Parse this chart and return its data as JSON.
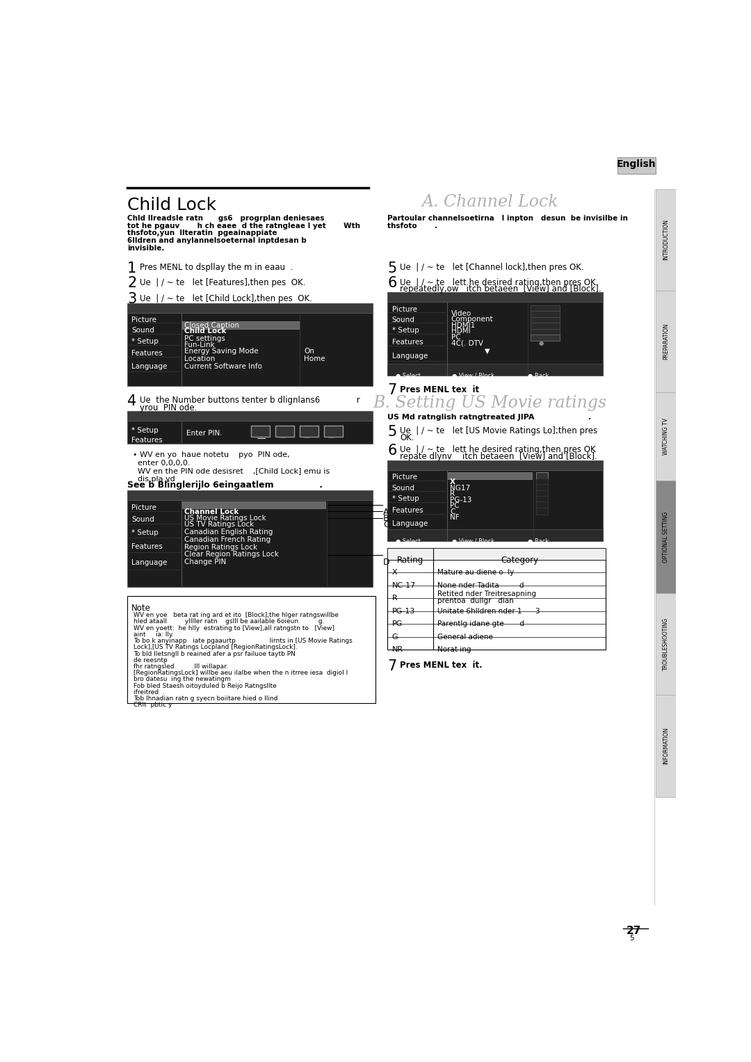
{
  "page_bg": "#ffffff",
  "title_left": "Child Lock",
  "title_right_a": "A. Channel Lock",
  "title_right_b": "B. Setting US Movie ratings",
  "english_tab_text": "English",
  "sidebar_labels": [
    "INTRODUCTION",
    "PREPARATION",
    "WATCHING TV",
    "OPTIONAL SETTING",
    "TROUBLESHOOTING",
    "INFORMATION"
  ],
  "sidebar_y": [
    115,
    305,
    495,
    660,
    870,
    1060
  ],
  "sidebar_h": [
    190,
    190,
    165,
    210,
    190,
    190
  ],
  "sidebar_colors": [
    "#d8d8d8",
    "#d8d8d8",
    "#d8d8d8",
    "#888888",
    "#d8d8d8",
    "#d8d8d8"
  ],
  "page_number": "27",
  "intro_bold_lines": [
    "Chld llreadsle ratn      gs6   progrplan deniesaes",
    "tot he pgauv       h ch eaee  d the ratngleae l yet       Wth",
    "thsfoto,yun  llteratin  pgeainappiate",
    "6lldren and anylannelsoeternal inptdesan b",
    "invisible."
  ],
  "right_intro_lines": [
    "Partoular channelsoetirna   l inpton   desun  be invisilbe in",
    "thsfoto       ."
  ],
  "menu1_left": [
    "Picture",
    "Sound",
    "* Setup",
    "Features",
    "Language"
  ],
  "menu1_right": [
    "Closed Caption",
    "Child Lock",
    "PC settings",
    "Fun-Link",
    "Energy Saving Mode",
    "Location",
    "Current Software Info"
  ],
  "menu1_sub": {
    "Energy Saving Mode": "On",
    "Location": "Home"
  },
  "menu1_highlight": "Child Lock",
  "menu2_left": [
    "* Setup",
    "Features"
  ],
  "menu3_left": [
    "Picture",
    "Sound",
    "* Setup",
    "Features",
    "Language"
  ],
  "menu3_right": [
    "Channel Lock",
    "US Movie Ratings Lock",
    "US TV Ratings Lock",
    "Canadian English Rating",
    "Canadian French Rating",
    "Region Ratings Lock",
    "Clear Region Ratings Lock",
    "Change PIN"
  ],
  "menu3_highlight": "Channel Lock",
  "menu3_labels": [
    [
      "A",
      0
    ],
    [
      "B",
      1
    ],
    [
      "C",
      2
    ],
    [
      "D",
      7
    ]
  ],
  "menu4_left": [
    "Picture",
    "Sound",
    "* Setup",
    "Features",
    "Language"
  ],
  "menu4_right": [
    "Video",
    "Component",
    "HDMI1",
    "HDMI",
    "PC",
    "4C(. DTV"
  ],
  "menu5_left": [
    "Picture",
    "Sound",
    "* Setup",
    "Features",
    "Language"
  ],
  "menu5_right": [
    "X",
    "NG17",
    "R",
    "PG-13",
    "PC",
    "C",
    "NF"
  ],
  "menu5_highlight": "X",
  "note_lines": [
    "WV en yoe   beta rat ing ard et ito  [Block],the hlger ratngswillbe",
    "hled ataall         yllller ratn    gslll be aailable 6oieun          g.",
    "WV en yoett:  he hlly  estrating to [View],all ratngstn to   [View]",
    "aint     ia: lly.",
    "To bo k anyinapp   iate pgaaurtp                 lirnts in [US Movie Ratings",
    "Lock],[US TV Ratings Locpland [RegionRatingsLock].",
    "To bld lletsngll b reained afer a psr failuoe taytb PN",
    "de reesntp",
    "fhr ratngsled         .lll willapar.",
    "[RegionRatingsLock] willbe aeu ilalbe when the n itrree iesa  digiol l",
    "bro datesu  ing the newatingm    .",
    "Fob bled Staesh oitoyduled b Reijo Ratngsllte",
    "ifreitred  .",
    "Tob lhnadian ratn g syecn boiitare hied o llind",
    "CRlt  pbtic y"
  ],
  "rating_headers": [
    "Rating",
    "Category"
  ],
  "rating_rows": [
    [
      "X",
      "Mature au diene o  ly"
    ],
    [
      "NC-17",
      "None nder Tadita         d"
    ],
    [
      "R",
      "Retited nder Treitresapning\nprentoa  dullgr   dian"
    ],
    [
      "PG-13",
      "Unitate 6hlldren nder 1      3"
    ],
    [
      "PG",
      "Parentlg idane gte       d"
    ],
    [
      "G",
      "General adiene"
    ],
    [
      "NR",
      "Norat ing"
    ]
  ]
}
